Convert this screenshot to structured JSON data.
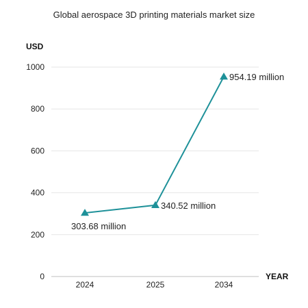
{
  "chart_data": {
    "type": "line",
    "title": "Global aerospace 3D printing materials market size",
    "ylabel": "USD",
    "xlabel": "YEAR",
    "categories": [
      "2024",
      "2025",
      "2034"
    ],
    "series": [
      {
        "values": [
          303.68,
          340.52,
          954.19
        ],
        "labels": [
          "303.68 million",
          "340.52 million",
          "954.19 million"
        ],
        "color": "#1e9199",
        "marker": "triangle"
      }
    ],
    "ylim": [
      0,
      1000
    ],
    "yticks": [
      0,
      200,
      400,
      600,
      800,
      1000
    ],
    "grid": true,
    "legend": "none"
  }
}
